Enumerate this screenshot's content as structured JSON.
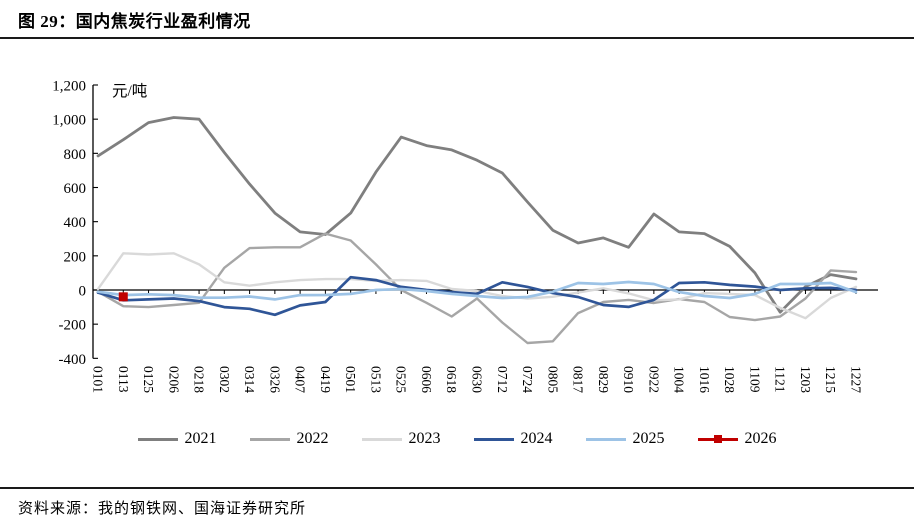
{
  "figure": {
    "title": "图 29：国内焦炭行业盈利情况",
    "source": "资料来源：我的钢铁网、国海证券研究所"
  },
  "chart_data": {
    "type": "line",
    "unit_label": "元/吨",
    "grid": false,
    "legend_position": "bottom",
    "categories": [
      "0101",
      "0113",
      "0125",
      "0206",
      "0218",
      "0302",
      "0314",
      "0326",
      "0407",
      "0419",
      "0501",
      "0513",
      "0525",
      "0606",
      "0618",
      "0630",
      "0712",
      "0724",
      "0805",
      "0817",
      "0829",
      "0910",
      "0922",
      "1004",
      "1016",
      "1028",
      "1109",
      "1121",
      "1203",
      "1215",
      "1227"
    ],
    "y_axis": {
      "min": -400,
      "max": 1200,
      "tick_step": 200,
      "tick_labels": [
        "1,200",
        "1,000",
        "800",
        "600",
        "400",
        "200",
        "0",
        "-200",
        "-400"
      ]
    },
    "series": [
      {
        "name": "2021",
        "color": "#7f7f7f",
        "width": 2.8,
        "values": [
          785,
          880,
          980,
          1010,
          1000,
          805,
          620,
          450,
          340,
          325,
          450,
          690,
          895,
          845,
          820,
          760,
          685,
          515,
          350,
          275,
          305,
          250,
          445,
          340,
          330,
          255,
          100,
          -130,
          20,
          90,
          65
        ]
      },
      {
        "name": "2022",
        "color": "#a6a6a6",
        "width": 2.4,
        "values": [
          -10,
          -95,
          -100,
          -88,
          -75,
          130,
          245,
          250,
          250,
          330,
          290,
          150,
          0,
          -75,
          -155,
          -50,
          -190,
          -310,
          -300,
          -135,
          -70,
          -58,
          -76,
          -53,
          -70,
          -158,
          -176,
          -155,
          -50,
          115,
          105
        ]
      },
      {
        "name": "2023",
        "color": "#d9d9d9",
        "width": 2.4,
        "values": [
          5,
          215,
          208,
          215,
          150,
          45,
          25,
          45,
          58,
          64,
          64,
          53,
          58,
          53,
          6,
          -6,
          -35,
          -50,
          -40,
          -15,
          10,
          -20,
          -60,
          -55,
          -18,
          -23,
          -29,
          -105,
          -165,
          -47,
          18
        ]
      },
      {
        "name": "2024",
        "color": "#2f5597",
        "width": 2.7,
        "values": [
          -15,
          -60,
          -55,
          -50,
          -65,
          -100,
          -110,
          -145,
          -90,
          -70,
          75,
          58,
          18,
          0,
          -12,
          -23,
          45,
          18,
          -18,
          -41,
          -88,
          -99,
          -58,
          41,
          45,
          30,
          20,
          0,
          10,
          12,
          0
        ]
      },
      {
        "name": "2025",
        "color": "#9dc3e6",
        "width": 2.7,
        "values": [
          -10,
          -30,
          -25,
          -30,
          -45,
          -45,
          -38,
          -55,
          -30,
          -29,
          -23,
          0,
          6,
          -6,
          -23,
          -35,
          -47,
          -41,
          -10,
          41,
          35,
          47,
          35,
          -12,
          -35,
          -47,
          -23,
          35,
          35,
          41,
          -12
        ]
      },
      {
        "name": "2026",
        "color": "#c00000",
        "width": 2.4,
        "marker": "square",
        "points": [
          {
            "category": "0113",
            "value": -40
          }
        ]
      }
    ]
  }
}
